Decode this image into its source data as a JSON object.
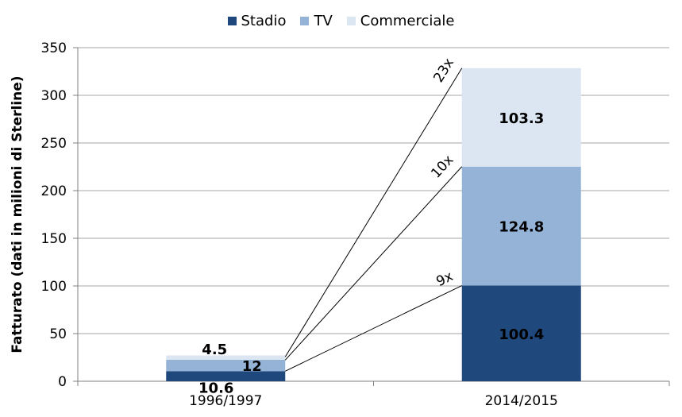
{
  "colors": {
    "stadio": "#1f497d",
    "tv": "#95b3d7",
    "commerciale": "#dce6f2",
    "axis": "#808080",
    "grid": "#a6a6a6"
  },
  "chart_data": {
    "type": "bar",
    "stacked": true,
    "categories": [
      "1996/1997",
      "2014/2015"
    ],
    "series": [
      {
        "name": "Stadio",
        "values": [
          10.6,
          100.4
        ]
      },
      {
        "name": "TV",
        "values": [
          12,
          124.8
        ]
      },
      {
        "name": "Commerciale",
        "values": [
          4.5,
          103.3
        ]
      }
    ],
    "ylabel": "Fatturato (dati in milioni di Sterline)",
    "xlabel": "",
    "ylim": [
      0,
      350
    ],
    "yticks": [
      0,
      50,
      100,
      150,
      200,
      250,
      300,
      350
    ],
    "grid": true,
    "legend_position": "top-center",
    "annotations": [
      {
        "label": "9x",
        "series": "Stadio"
      },
      {
        "label": "10x",
        "series": "TV"
      },
      {
        "label": "23x",
        "series": "Commerciale"
      }
    ]
  }
}
